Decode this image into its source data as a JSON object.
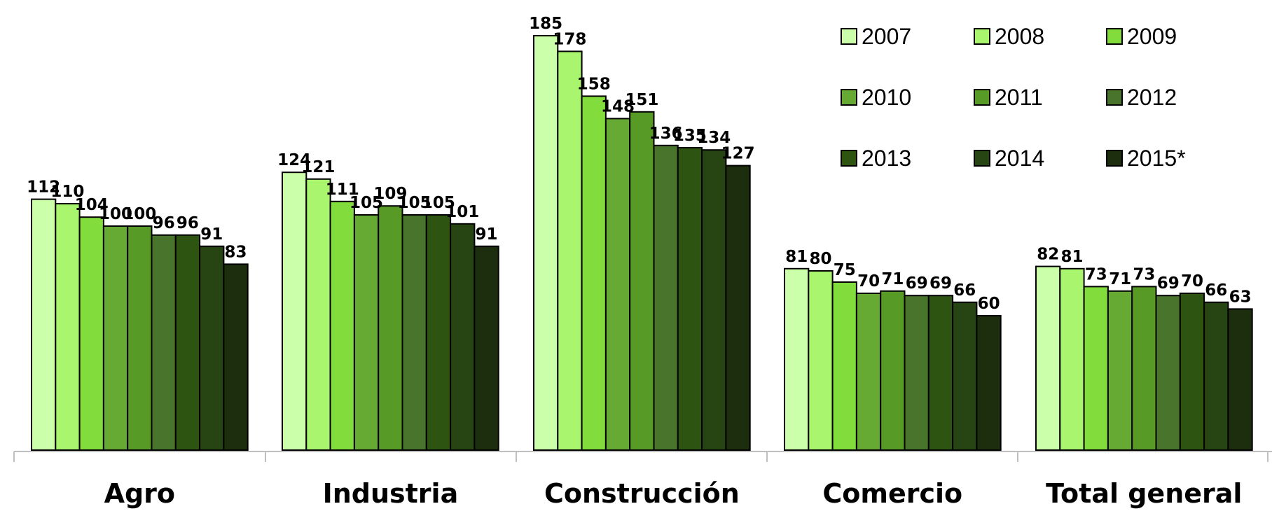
{
  "chart_data": {
    "type": "bar",
    "title": "",
    "xlabel": "",
    "ylabel": "",
    "categories": [
      "Agro",
      "Industria",
      "Construcción",
      "Comercio",
      "Total general"
    ],
    "ylim": [
      0,
      200
    ],
    "grid": false,
    "legend_position": "top-right",
    "series": [
      {
        "name": "2007",
        "color": "#ccffaa",
        "values": [
          112,
          124,
          185,
          81,
          82
        ]
      },
      {
        "name": "2008",
        "color": "#aaf56e",
        "values": [
          110,
          121,
          178,
          80,
          81
        ]
      },
      {
        "name": "2009",
        "color": "#82dc3c",
        "values": [
          104,
          111,
          158,
          75,
          73
        ]
      },
      {
        "name": "2010",
        "color": "#66aa33",
        "values": [
          100,
          105,
          148,
          70,
          71
        ]
      },
      {
        "name": "2011",
        "color": "#579a25",
        "values": [
          100,
          109,
          151,
          71,
          73
        ]
      },
      {
        "name": "2012",
        "color": "#48742c",
        "values": [
          96,
          105,
          136,
          69,
          69
        ]
      },
      {
        "name": "2013",
        "color": "#2e5412",
        "values": [
          96,
          105,
          135,
          69,
          70
        ]
      },
      {
        "name": "2014",
        "color": "#264513",
        "values": [
          91,
          101,
          134,
          66,
          66
        ]
      },
      {
        "name": "2015*",
        "color": "#1c2e0e",
        "values": [
          83,
          91,
          127,
          60,
          63
        ]
      }
    ]
  }
}
